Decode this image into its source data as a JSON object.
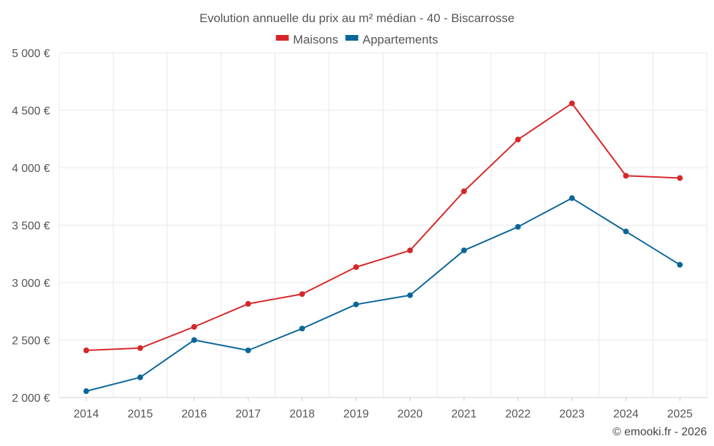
{
  "chart_data": {
    "type": "line",
    "title": "Evolution annuelle du prix au m² médian - 40 - Biscarrosse",
    "categories": [
      "2014",
      "2015",
      "2016",
      "2017",
      "2018",
      "2019",
      "2020",
      "2021",
      "2022",
      "2023",
      "2024",
      "2025"
    ],
    "series": [
      {
        "name": "Maisons",
        "color": "#d62728",
        "values": [
          2410,
          2430,
          2615,
          2815,
          2900,
          3135,
          3280,
          3795,
          4245,
          4560,
          3930,
          3910
        ]
      },
      {
        "name": "Appartements",
        "color": "#0a6699",
        "values": [
          2055,
          2175,
          2500,
          2410,
          2600,
          2810,
          2890,
          3280,
          3485,
          3735,
          3445,
          3155
        ]
      }
    ],
    "ylim": [
      2000,
      5000
    ],
    "yticks": [
      2000,
      2500,
      3000,
      3500,
      4000,
      4500,
      5000
    ],
    "ytick_labels": [
      "2 000 €",
      "2 500 €",
      "3 000 €",
      "3 500 €",
      "4 000 €",
      "4 500 €",
      "5 000 €"
    ],
    "xlabel": "",
    "ylabel": "",
    "grid": true,
    "legend_position": "top-center"
  },
  "credit": "© emooki.fr - 2026"
}
